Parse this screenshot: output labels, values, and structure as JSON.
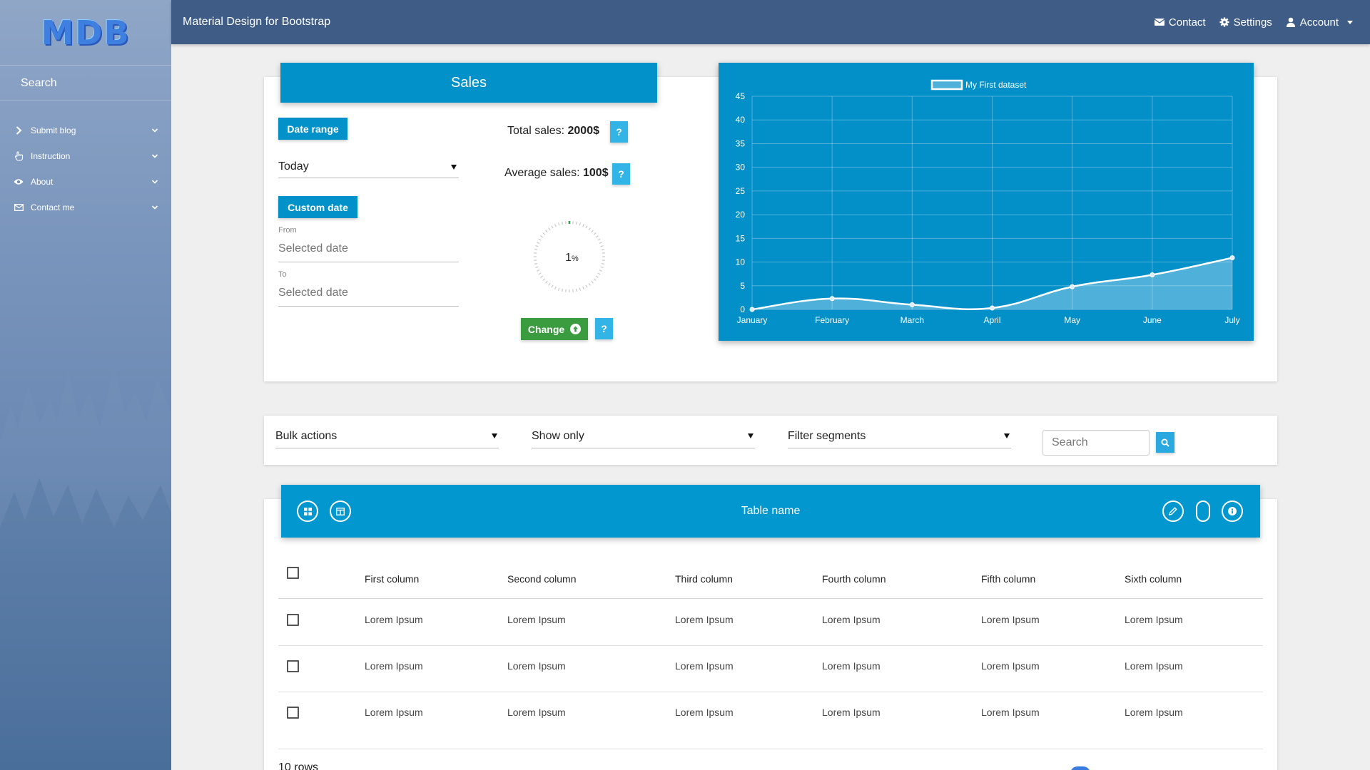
{
  "sidebar": {
    "logo": "MDB",
    "search_placeholder": "Search",
    "items": [
      {
        "label": "Submit blog",
        "icon": "chevron-right-icon"
      },
      {
        "label": "Instruction",
        "icon": "hand-pointer-icon"
      },
      {
        "label": "About",
        "icon": "eye-icon"
      },
      {
        "label": "Contact me",
        "icon": "envelope-icon"
      }
    ]
  },
  "navbar": {
    "brand": "Material Design for Bootstrap",
    "contact": "Contact",
    "settings": "Settings",
    "account": "Account"
  },
  "sales": {
    "title": "Sales",
    "date_range_label": "Date range",
    "period_value": "Today",
    "custom_date_label": "Custom date",
    "from_label": "From",
    "from_placeholder": "Selected date",
    "to_label": "To",
    "to_placeholder": "Selected date",
    "total_label": "Total sales:",
    "total_value": "2000$",
    "average_label": "Average sales:",
    "average_value": "100$",
    "help_label": "?",
    "progress_value": "1",
    "progress_unit": "%",
    "progress_fraction": 0.01,
    "change_label": "Change"
  },
  "chart_data": {
    "type": "line",
    "categories": [
      "January",
      "February",
      "March",
      "April",
      "May",
      "June",
      "July"
    ],
    "series": [
      {
        "name": "My First dataset",
        "values": [
          0,
          2.3,
          1,
          0.3,
          4.8,
          7.3,
          10.9
        ]
      }
    ],
    "yticks": [
      "0",
      "5",
      "10",
      "15",
      "20",
      "25",
      "30",
      "35",
      "40",
      "45"
    ],
    "ylim": [
      0,
      45
    ],
    "grid": true,
    "legend": "top-center",
    "fill": true
  },
  "filters": {
    "bulk_actions": "Bulk actions",
    "show_only": "Show only",
    "filter_segments": "Filter segments",
    "search_placeholder": "Search"
  },
  "table": {
    "name": "Table name",
    "columns": [
      "First column",
      "Second column",
      "Third column",
      "Fourth column",
      "Fifth column",
      "Sixth column"
    ],
    "rows": [
      [
        "Lorem Ipsum",
        "Lorem Ipsum",
        "Lorem Ipsum",
        "Lorem Ipsum",
        "Lorem Ipsum",
        "Lorem Ipsum"
      ],
      [
        "Lorem Ipsum",
        "Lorem Ipsum",
        "Lorem Ipsum",
        "Lorem Ipsum",
        "Lorem Ipsum",
        "Lorem Ipsum"
      ],
      [
        "Lorem Ipsum",
        "Lorem Ipsum",
        "Lorem Ipsum",
        "Lorem Ipsum",
        "Lorem Ipsum",
        "Lorem Ipsum"
      ]
    ],
    "rows_per_page": "10 rows"
  },
  "colors": {
    "navbar": "#3f5c87",
    "primary": "#0291c9",
    "success": "#3a9b3f",
    "help": "#33b4e6"
  }
}
